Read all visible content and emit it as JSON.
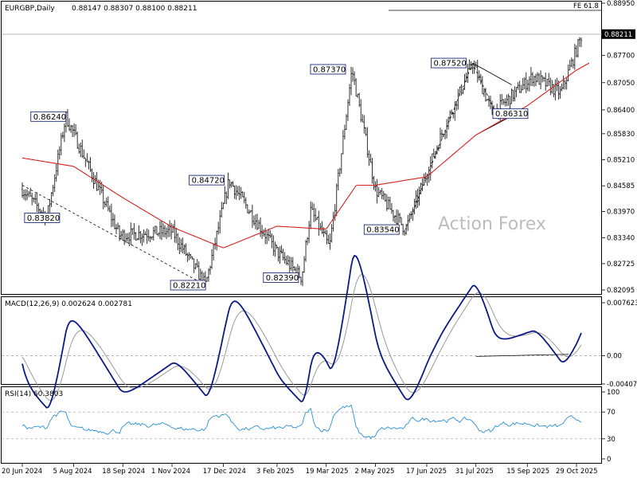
{
  "header": {
    "symbol": "EURGBP,Daily",
    "ohlc": "0.88147 0.88307 0.88100 0.88211"
  },
  "watermark": "Action Forex",
  "fe_label": "FE 61.8",
  "colors": {
    "candles": "#1b1b1b",
    "ma": "#d62020",
    "macd": "#0d1a86",
    "macd_signal": "#9a9a9a",
    "rsi": "#2a8fd6",
    "trendlines": "#000000",
    "grid": "#cfcfcf"
  },
  "chart_data": [
    {
      "type": "line",
      "title": "EURGBP,Daily",
      "description_series": [
        "price",
        "moving average"
      ],
      "price_axis_ticks": [
        "0.88950",
        "0.88220",
        "0.87700",
        "0.87050",
        "0.86400",
        "0.85830",
        "0.85210",
        "0.84585",
        "0.83970",
        "0.83340",
        "0.82725",
        "0.82095"
      ],
      "ylim": [
        0.82,
        0.8895
      ],
      "current_price": "0.88211",
      "x_tick_labels": [
        "20 Jun 2024",
        "5 Aug 2024",
        "18 Sep 2024",
        "1 Nov 2024",
        "17 Dec 2024",
        "3 Feb 2025",
        "19 Mar 2025",
        "2 May 2025",
        "17 Jun 2025",
        "31 Jul 2025",
        "15 Sep 2025",
        "29 Oct 2025"
      ],
      "annotations": [
        "0.83820",
        "0.86240",
        "0.82210",
        "0.84720",
        "0.82390",
        "0.87370",
        "0.83540",
        "0.87520",
        "0.86310"
      ],
      "price_keypoints": [
        {
          "x": "20 Jun 2024",
          "y": 0.845
        },
        {
          "x": "12 Jul 2024",
          "y": 0.8382
        },
        {
          "x": "29 Jul 2024",
          "y": 0.8624
        },
        {
          "x": "15 Sep 2024",
          "y": 0.834
        },
        {
          "x": "1 Nov 2024",
          "y": 0.835
        },
        {
          "x": "1 Dec 2024",
          "y": 0.8221
        },
        {
          "x": "22 Dec 2024",
          "y": 0.8472
        },
        {
          "x": "3 Feb 2025",
          "y": 0.83
        },
        {
          "x": "25 Feb 2025",
          "y": 0.8239
        },
        {
          "x": "5 Mar 2025",
          "y": 0.84
        },
        {
          "x": "22 Mar 2025",
          "y": 0.831
        },
        {
          "x": "11 Apr 2025",
          "y": 0.8737
        },
        {
          "x": "2 May 2025",
          "y": 0.845
        },
        {
          "x": "29 May 2025",
          "y": 0.8354
        },
        {
          "x": "30 Jun 2025",
          "y": 0.858
        },
        {
          "x": "28 Jul 2025",
          "y": 0.8752
        },
        {
          "x": "15 Aug 2025",
          "y": 0.8631
        },
        {
          "x": "20 Sep 2025",
          "y": 0.872
        },
        {
          "x": "15 Oct 2025",
          "y": 0.868
        },
        {
          "x": "3 Nov 2025",
          "y": 0.8821
        }
      ],
      "ma_keypoints": [
        {
          "x": "20 Jun 2024",
          "y": 0.8525
        },
        {
          "x": "5 Aug 2024",
          "y": 0.8505
        },
        {
          "x": "18 Sep 2024",
          "y": 0.843
        },
        {
          "x": "1 Nov 2024",
          "y": 0.836
        },
        {
          "x": "17 Dec 2024",
          "y": 0.831
        },
        {
          "x": "3 Feb 2025",
          "y": 0.8362
        },
        {
          "x": "19 Mar 2025",
          "y": 0.8355
        },
        {
          "x": "15 Apr 2025",
          "y": 0.846
        },
        {
          "x": "2 May 2025",
          "y": 0.846
        },
        {
          "x": "17 Jun 2025",
          "y": 0.848
        },
        {
          "x": "31 Jul 2025",
          "y": 0.858
        },
        {
          "x": "15 Sep 2025",
          "y": 0.865
        },
        {
          "x": "29 Oct 2025",
          "y": 0.8735
        }
      ]
    },
    {
      "type": "line",
      "title": "MACD(12,26,9) 0.002624 0.002781",
      "y_tick_labels": [
        "0.007623",
        "0.00",
        "-0.004073"
      ],
      "ylim": [
        -0.004073,
        0.007623
      ]
    },
    {
      "type": "line",
      "title": "RSI(14) 60.3803",
      "y_tick_labels": [
        "100",
        "70",
        "30",
        "0"
      ],
      "ylim": [
        0,
        100
      ]
    }
  ]
}
